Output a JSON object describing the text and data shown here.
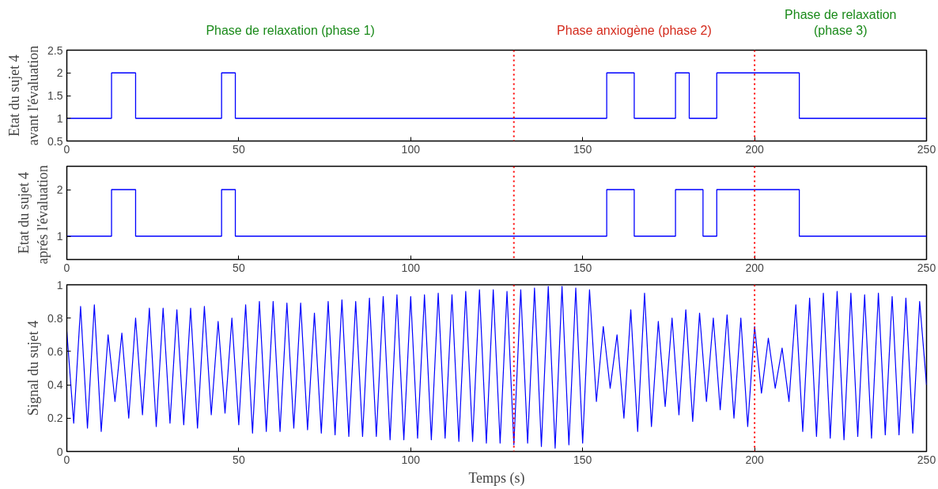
{
  "chart_data": [
    {
      "type": "step",
      "ylabel": "Etat du sujet 4\navant l'évaluation",
      "x": [
        0,
        13,
        20,
        45,
        49,
        157,
        165,
        177,
        181,
        189,
        213,
        250
      ],
      "series": [
        {
          "color": "#0000ff",
          "values": [
            1,
            2,
            1,
            2,
            1,
            2,
            1,
            2,
            1,
            2,
            1,
            1
          ]
        }
      ],
      "xlim": [
        0,
        250
      ],
      "xticks": [
        0,
        50,
        100,
        150,
        200,
        250
      ],
      "ylim": [
        0.5,
        2.5
      ],
      "yticks": [
        0.5,
        1,
        1.5,
        2,
        2.5
      ],
      "grid": false,
      "ref_lines": [
        {
          "axis": "x",
          "value": 130,
          "color": "#ff0000",
          "line_style": "dotted"
        },
        {
          "axis": "x",
          "value": 200,
          "color": "#ff0000",
          "line_style": "dotted"
        }
      ],
      "annotations": [
        "Phase de relaxation (phase 1)",
        "Phase anxiogène (phase 2)",
        "Phase de relaxation\n(phase 3)"
      ]
    },
    {
      "type": "step",
      "ylabel": "Etat du sujet 4\naprés  l'évaluation",
      "x": [
        0,
        13,
        20,
        45,
        49,
        157,
        165,
        177,
        185,
        189,
        213,
        250
      ],
      "series": [
        {
          "color": "#0000ff",
          "values": [
            1,
            2,
            1,
            2,
            1,
            2,
            1,
            2,
            1,
            2,
            1,
            1
          ]
        }
      ],
      "xlim": [
        0,
        250
      ],
      "xticks": [
        0,
        50,
        100,
        150,
        200,
        250
      ],
      "ylim": [
        0.5,
        2.5
      ],
      "yticks": [
        1,
        2
      ],
      "grid": false,
      "ref_lines": [
        {
          "axis": "x",
          "value": 130,
          "color": "#ff0000",
          "line_style": "dotted"
        },
        {
          "axis": "x",
          "value": 200,
          "color": "#ff0000",
          "line_style": "dotted"
        }
      ]
    },
    {
      "type": "line",
      "ylabel": "Signal du sujet 4",
      "xlabel": "Temps (s)",
      "x": [
        0,
        2,
        4,
        6,
        8,
        10,
        12,
        14,
        16,
        18,
        20,
        22,
        24,
        26,
        28,
        30,
        32,
        34,
        36,
        38,
        40,
        42,
        44,
        46,
        48,
        50,
        52,
        54,
        56,
        58,
        60,
        62,
        64,
        66,
        68,
        70,
        72,
        74,
        76,
        78,
        80,
        82,
        84,
        86,
        88,
        90,
        92,
        94,
        96,
        98,
        100,
        102,
        104,
        106,
        108,
        110,
        112,
        114,
        116,
        118,
        120,
        122,
        124,
        126,
        128,
        130,
        132,
        134,
        136,
        138,
        140,
        142,
        144,
        146,
        148,
        150,
        152,
        154,
        156,
        158,
        160,
        162,
        164,
        166,
        168,
        170,
        172,
        174,
        176,
        178,
        180,
        182,
        184,
        186,
        188,
        190,
        192,
        194,
        196,
        198,
        200,
        202,
        204,
        206,
        208,
        210,
        212,
        214,
        216,
        218,
        220,
        222,
        224,
        226,
        228,
        230,
        232,
        234,
        236,
        238,
        240,
        242,
        244,
        246,
        248,
        250
      ],
      "series": [
        {
          "color": "#0000ff",
          "values": [
            0.72,
            0.17,
            0.87,
            0.14,
            0.88,
            0.12,
            0.7,
            0.3,
            0.71,
            0.2,
            0.8,
            0.22,
            0.86,
            0.15,
            0.86,
            0.17,
            0.85,
            0.16,
            0.86,
            0.14,
            0.87,
            0.22,
            0.78,
            0.23,
            0.8,
            0.16,
            0.88,
            0.11,
            0.9,
            0.12,
            0.9,
            0.12,
            0.89,
            0.14,
            0.89,
            0.13,
            0.83,
            0.11,
            0.9,
            0.1,
            0.91,
            0.09,
            0.9,
            0.09,
            0.92,
            0.09,
            0.93,
            0.07,
            0.94,
            0.07,
            0.93,
            0.08,
            0.94,
            0.07,
            0.95,
            0.08,
            0.94,
            0.06,
            0.96,
            0.06,
            0.97,
            0.05,
            0.97,
            0.05,
            0.96,
            0.04,
            0.97,
            0.05,
            0.98,
            0.03,
            0.99,
            0.02,
            0.99,
            0.04,
            0.98,
            0.05,
            0.97,
            0.3,
            0.75,
            0.38,
            0.7,
            0.2,
            0.85,
            0.12,
            0.95,
            0.15,
            0.78,
            0.27,
            0.8,
            0.22,
            0.85,
            0.18,
            0.83,
            0.3,
            0.8,
            0.25,
            0.82,
            0.2,
            0.8,
            0.15,
            0.75,
            0.35,
            0.68,
            0.38,
            0.62,
            0.3,
            0.88,
            0.12,
            0.92,
            0.09,
            0.95,
            0.08,
            0.96,
            0.07,
            0.95,
            0.09,
            0.94,
            0.08,
            0.95,
            0.1,
            0.93,
            0.1,
            0.92,
            0.11,
            0.9,
            0.4
          ]
        }
      ],
      "xlim": [
        0,
        250
      ],
      "xticks": [
        0,
        50,
        100,
        150,
        200,
        250
      ],
      "ylim": [
        0,
        1
      ],
      "yticks": [
        0,
        0.2,
        0.4,
        0.6,
        0.8,
        1
      ],
      "grid": false,
      "ref_lines": [
        {
          "axis": "x",
          "value": 130,
          "color": "#ff0000",
          "line_style": "dotted"
        },
        {
          "axis": "x",
          "value": 200,
          "color": "#ff0000",
          "line_style": "dotted"
        }
      ]
    }
  ]
}
